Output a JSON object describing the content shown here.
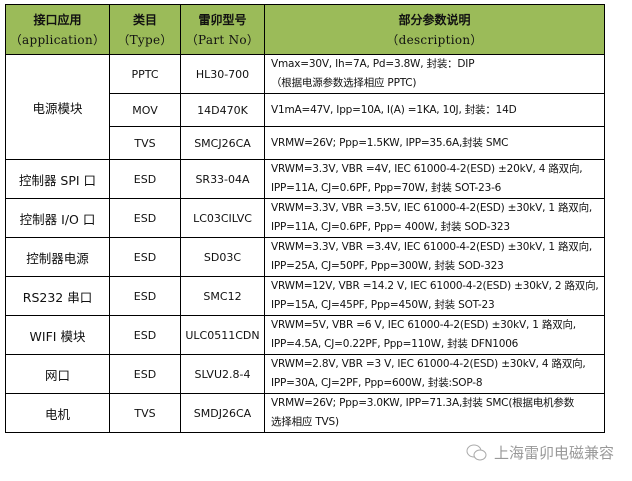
{
  "header": {
    "app": "接口应用",
    "app_en": "（application）",
    "type": "类目",
    "type_en": "（Type）",
    "part": "雷卯型号",
    "part_en": "（Part No）",
    "desc": "部分参数说明",
    "desc_en": "（description）"
  },
  "rows": [
    {
      "app": "电源模块",
      "type": "PPTC",
      "part": "HL30-700",
      "l1": "Vmax=30V, Ih=7A, Pd=3.8W,    封装：DIP",
      "l2": "（根据电源参数选择相应 PPTC)"
    },
    {
      "type": "MOV",
      "part": "14D470K",
      "l1": "V1mA=47V, Ipp=10A, I(A) =1KA,    10J, 封装：14D",
      "l2": ""
    },
    {
      "type": "TVS",
      "part": "SMCJ26CA",
      "l1": "VRMW=26V;    Ppp=1.5KW,    IPP=35.6A,封装 SMC",
      "l2": ""
    },
    {
      "app": "控制器 SPI 口",
      "type": "ESD",
      "part": "SR33-04A",
      "l1": "VRWM=3.3V,    VBR =4V,    IEC 61000-4-2(ESD) ±20kV,    4 路双向,",
      "l2": "IPP=11A, CJ=0.6PF, Ppp=70W,  封装 SOT-23-6"
    },
    {
      "app": "控制器 I/O 口",
      "type": "ESD",
      "part": "LC03CILVC",
      "l1": "VRWM=3.3V,    VBR =3.5V,    IEC 61000-4-2(ESD) ±30kV, 1 路双向,",
      "l2": "IPP=11A, CJ=0.6PF, Ppp= 400W,  封装 SOD-323"
    },
    {
      "app": "控制器电源",
      "type": "ESD",
      "part": "SD03C",
      "l1": "VRWM=3.3V,    VBR =3.4V,    IEC 61000-4-2(ESD) ±30kV, 1 路双向,",
      "l2": "IPP=25A,    CJ=50PF,    Ppp=300W,    封装 SOD-323"
    },
    {
      "app": "RS232 串口",
      "type": "ESD",
      "part": "SMC12",
      "l1": "VRWM=12V,    VBR =14.2 V,    IEC 61000-4-2(ESD) ±30kV, 2 路双向,",
      "l2": "IPP=15A,    CJ=45PF,    Ppp=450W,    封装 SOT-23"
    },
    {
      "app": "WIFI 模块",
      "type": "ESD",
      "part": "ULC0511CDN",
      "l1": "VRWM=5V,    VBR =6 V,    IEC 61000-4-2(ESD) ±30kV,    1 路双向,",
      "l2": "IPP=4.5A,    CJ=0.22PF,    Ppp=110W,    封装 DFN1006"
    },
    {
      "app": "网口",
      "type": "ESD",
      "part": "SLVU2.8-4",
      "l1": "VRWM=2.8V,    VBR =3 V,    IEC 61000-4-2(ESD) ±30kV,    4 路双向,",
      "l2": "IPP=30A,    CJ=2PF,    Ppp=600W,    封装:SOP-8"
    },
    {
      "app": "电机",
      "type": "TVS",
      "part": "SMDJ26CA",
      "l1": "VRMW=26V;    Ppp=3.0KW,    IPP=71.3A,封装 SMC(根据电机参数",
      "l2": "选择相应 TVS)"
    }
  ],
  "watermark": "上海雷卯电磁兼容",
  "colors": {
    "header_bg": "#9bbb59"
  }
}
